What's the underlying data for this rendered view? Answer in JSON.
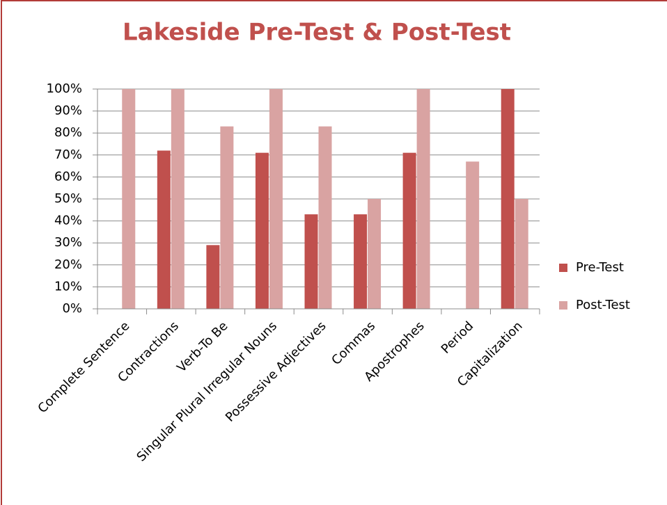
{
  "chart_data": {
    "type": "bar",
    "title": "Lakeside Pre-Test & Post-Test",
    "categories": [
      "Complete Sentence",
      "Contractions",
      "Verb-To Be",
      "Singular Plural Irregular Nouns",
      "Possessive Adjectives",
      "Commas",
      "Apostrophes",
      "Period",
      "Capitalization"
    ],
    "series": [
      {
        "name": "Pre-Test",
        "color": "#c0504d",
        "values": [
          0,
          72,
          29,
          71,
          43,
          43,
          71,
          0,
          100
        ]
      },
      {
        "name": "Post-Test",
        "color": "#d9a3a2",
        "values": [
          100,
          100,
          83,
          100,
          83,
          50,
          100,
          67,
          50
        ]
      }
    ],
    "ylim": [
      0,
      100
    ],
    "yticks": [
      {
        "value": 0,
        "label": "0%"
      },
      {
        "value": 10,
        "label": "10%"
      },
      {
        "value": 20,
        "label": "20%"
      },
      {
        "value": 30,
        "label": "30%"
      },
      {
        "value": 40,
        "label": "40%"
      },
      {
        "value": 50,
        "label": "50%"
      },
      {
        "value": 60,
        "label": "60%"
      },
      {
        "value": 70,
        "label": "70%"
      },
      {
        "value": 80,
        "label": "80%"
      },
      {
        "value": 90,
        "label": "90%"
      },
      {
        "value": 100,
        "label": "100%"
      }
    ],
    "grid": true,
    "legend": "right"
  }
}
